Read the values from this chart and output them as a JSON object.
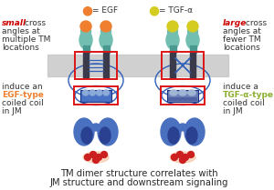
{
  "bg_color": "#ffffff",
  "title_line1": "TM dimer structure correlates with",
  "title_line2": "JM structure and downstream signaling",
  "title_fontsize": 7.2,
  "legend_egf_color": "#F08030",
  "legend_tgf_color": "#D4CC20",
  "legend_egf_label": "= EGF",
  "legend_tgf_label": "= TGF-α",
  "egf_type_color": "#F08030",
  "tgf_type_color": "#8DB030",
  "small_color": "#CC0000",
  "large_color": "#CC0000",
  "membrane_color": "#C8C8C8",
  "teal_color": "#72BFB2",
  "teal_dark": "#4A9990",
  "dark_blue_color": "#3A5DAE",
  "medium_blue_color": "#4A72C4",
  "light_blue_color": "#8BAAD8",
  "red_dot_color": "#CC2020",
  "red_box_color": "#DD1515",
  "connector_color": "#3060B8",
  "kinase_dark": "#2A4090",
  "kinase_light": "#4A70C0"
}
